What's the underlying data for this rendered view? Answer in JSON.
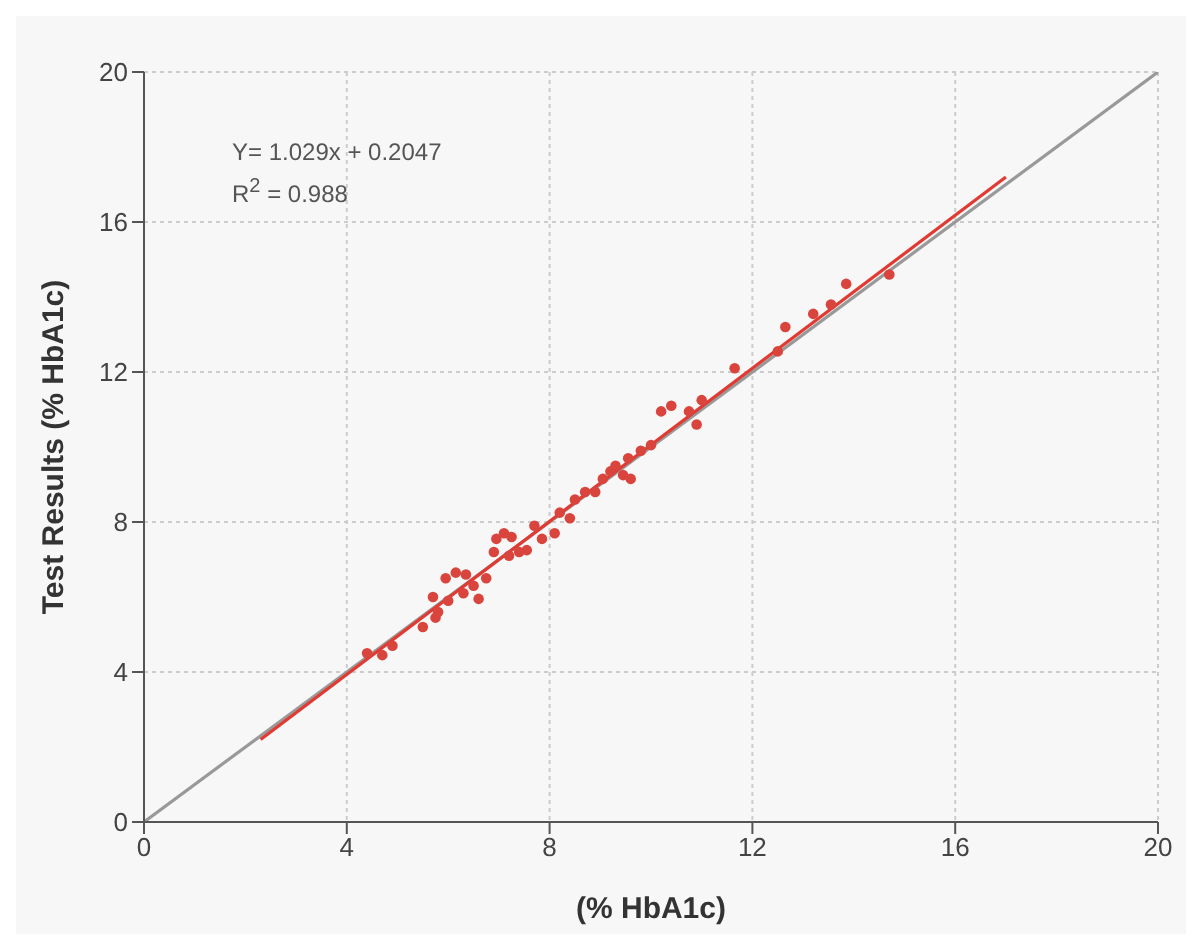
{
  "chart_data": {
    "type": "scatter",
    "xlabel": "(% HbA1c)",
    "ylabel": "Test Results  (% HbA1c)",
    "xlim": [
      0,
      20
    ],
    "ylim": [
      0,
      20
    ],
    "xticks": [
      0,
      4,
      8,
      12,
      16,
      20
    ],
    "yticks": [
      0,
      4,
      8,
      12,
      16,
      20
    ],
    "grid": true,
    "marker": "circle",
    "annotations": [
      "Y= 1.029x + 0.2047",
      "R$^{2}$  = 0.988"
    ],
    "series": [
      {
        "type": "line",
        "marker": "none",
        "color": "#999999",
        "x": [
          0,
          20
        ],
        "values": [
          0,
          20
        ]
      },
      {
        "type": "line",
        "marker": "none",
        "color": "#e03a33",
        "x": [
          2.3,
          17
        ],
        "values": [
          2.2,
          17.2
        ]
      },
      {
        "color": "#d9453d",
        "x": [
          4.4,
          4.7,
          4.9,
          5.5,
          5.7,
          5.75,
          5.8,
          5.95,
          6.0,
          6.15,
          6.3,
          6.35,
          6.5,
          6.6,
          6.75,
          6.9,
          6.95,
          7.1,
          7.2,
          7.25,
          7.4,
          7.55,
          7.7,
          7.85,
          8.1,
          8.2,
          8.4,
          8.5,
          8.7,
          8.9,
          9.05,
          9.2,
          9.3,
          9.45,
          9.55,
          9.6,
          9.8,
          10.0,
          10.2,
          10.4,
          10.75,
          10.9,
          11.0,
          11.65,
          12.5,
          12.65,
          13.2,
          13.55,
          13.85,
          14.7
        ],
        "values": [
          4.5,
          4.45,
          4.7,
          5.2,
          6.0,
          5.45,
          5.6,
          6.5,
          5.9,
          6.65,
          6.1,
          6.6,
          6.3,
          5.95,
          6.5,
          7.2,
          7.55,
          7.7,
          7.1,
          7.6,
          7.2,
          7.25,
          7.9,
          7.55,
          7.7,
          8.25,
          8.1,
          8.6,
          8.8,
          8.8,
          9.15,
          9.35,
          9.5,
          9.25,
          9.7,
          9.15,
          9.9,
          10.05,
          10.95,
          11.1,
          10.95,
          10.6,
          11.25,
          12.1,
          12.55,
          13.2,
          13.55,
          13.8,
          14.35,
          14.6
        ]
      }
    ]
  }
}
